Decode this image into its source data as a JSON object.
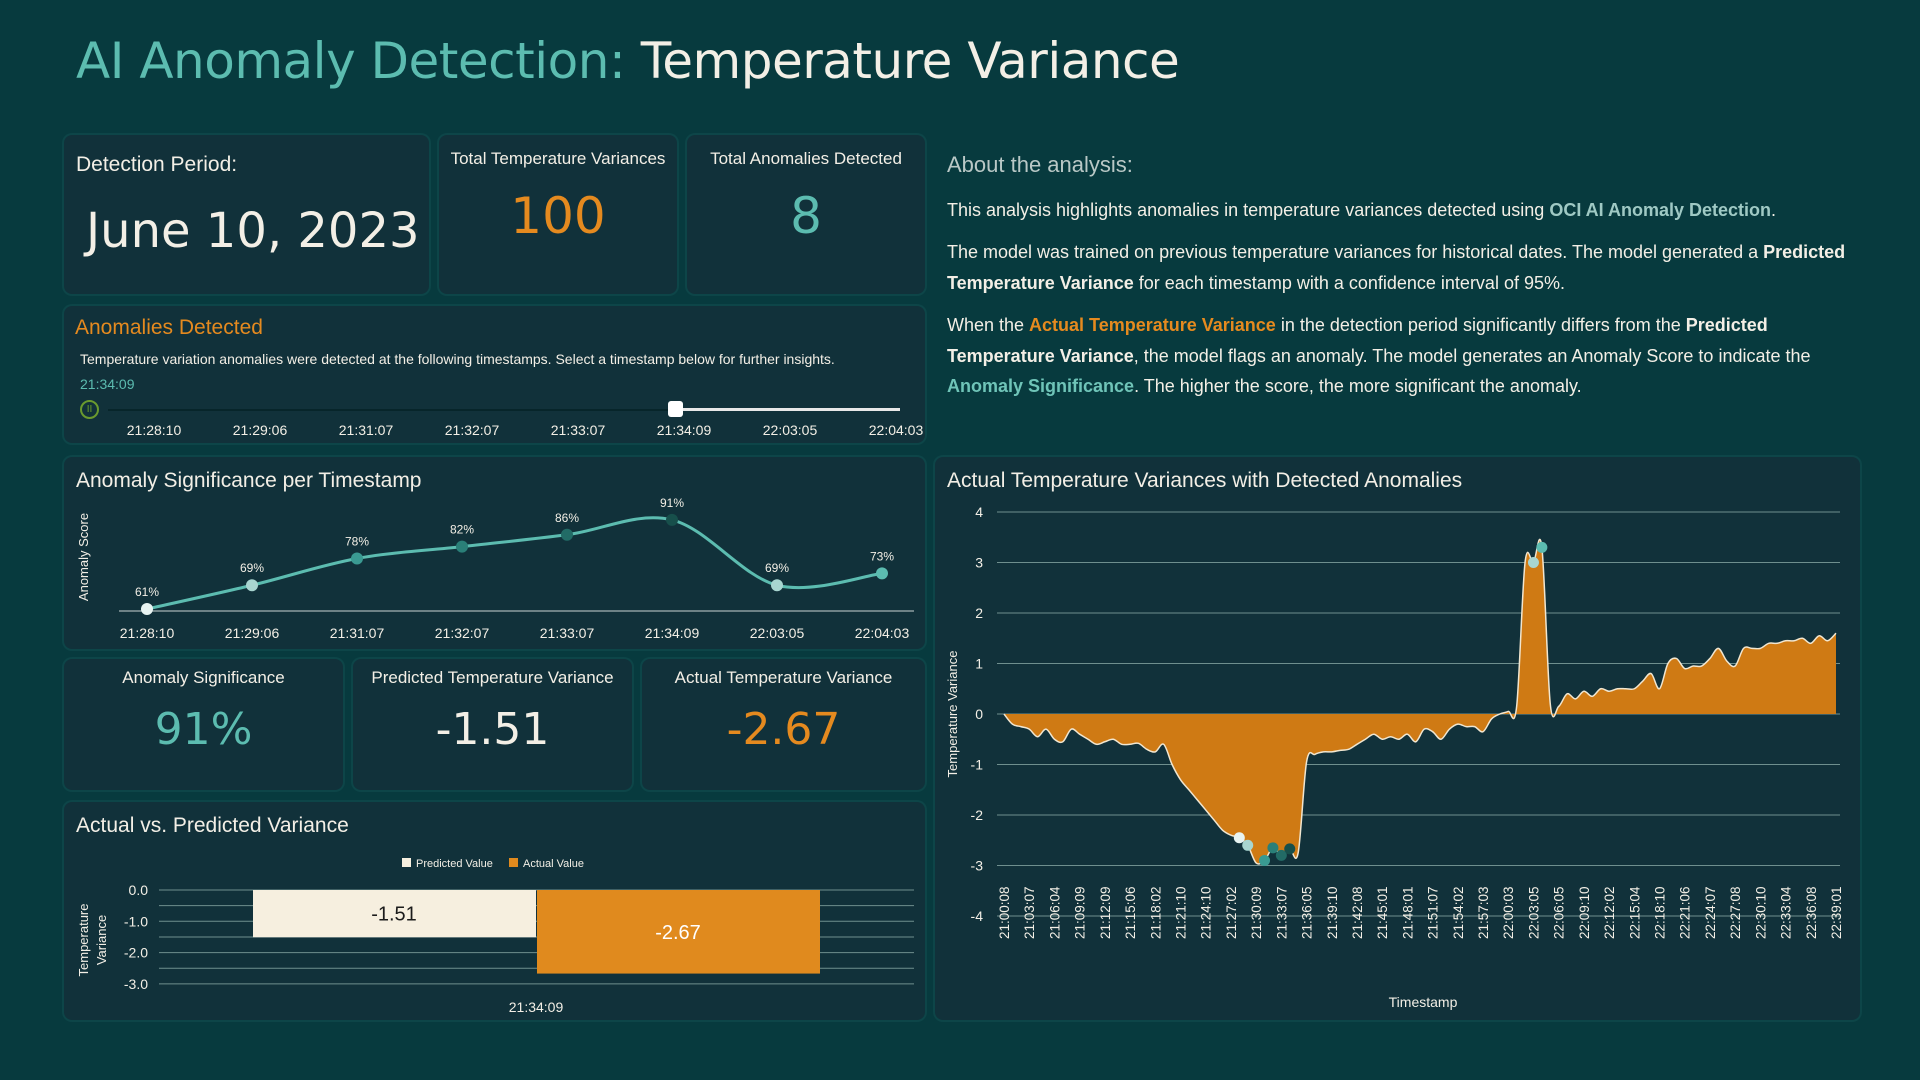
{
  "title": {
    "prefix": "AI Anomaly Detection:",
    "main": "Temperature Variance"
  },
  "cards": {
    "detection_period": {
      "label": "Detection Period:",
      "value": "June 10, 2023"
    },
    "total_variances": {
      "label": "Total Temperature Variances",
      "value": "100"
    },
    "total_anomalies": {
      "label": "Total Anomalies Detected",
      "value": "8"
    }
  },
  "anomalies_panel": {
    "title": "Anomalies Detected",
    "description": "Temperature variation anomalies were detected at the following timestamps. Select a timestamp below for further insights.",
    "selected": "21:34:09",
    "timestamps": [
      "21:28:10",
      "21:29:06",
      "21:31:07",
      "21:32:07",
      "21:33:07",
      "21:34:09",
      "22:03:05",
      "22:04:03"
    ],
    "selected_index": 5,
    "play_icon": "pause-circle-icon"
  },
  "kpis": {
    "significance": {
      "label": "Anomaly Significance",
      "value": "91%"
    },
    "predicted": {
      "label": "Predicted Temperature Variance",
      "value": "-1.51"
    },
    "actual": {
      "label": "Actual Temperature Variance",
      "value": "-2.67"
    }
  },
  "about": {
    "heading": "About the analysis:",
    "p1a": "This analysis highlights anomalies in temperature variances detected using ",
    "p1b": "OCI AI Anomaly Detection",
    "p1c": ".",
    "p2a": "The model was trained on previous temperature variances for historical dates. The model generated a ",
    "p2b": "Predicted Temperature Variance",
    "p2c": " for each timestamp with a confidence interval of 95%.",
    "p3a": "When the ",
    "p3b": "Actual Temperature Variance",
    "p3c": " in the detection period significantly differs from the ",
    "p3d": "Predicted Temperature Variance",
    "p3e": ", the model flags an anomaly. The model generates an Anomaly Score to indicate the ",
    "p3f": "Anomaly Significance",
    "p3g": ". The higher the score, the more significant the anomaly."
  },
  "colors": {
    "background": "#073a3e",
    "panel": "#11313a",
    "teal": "#5cbcb0",
    "orange": "#e08a1e",
    "cream": "#f6efdf"
  },
  "chart_data": [
    {
      "type": "line",
      "title": "Anomaly Significance per Timestamp",
      "ylabel": "Anomaly Score",
      "xlabel": "",
      "categories": [
        "21:28:10",
        "21:29:06",
        "21:31:07",
        "21:32:07",
        "21:33:07",
        "21:34:09",
        "22:03:05",
        "22:04:03"
      ],
      "values": [
        61,
        69,
        78,
        82,
        86,
        91,
        69,
        73
      ],
      "data_labels": [
        "61%",
        "69%",
        "78%",
        "82%",
        "86%",
        "91%",
        "69%",
        "73%"
      ],
      "grid": false
    },
    {
      "type": "bar",
      "title": "Actual vs. Predicted Variance",
      "ylabel": "Temperature Variance",
      "xlabel": "",
      "categories": [
        "21:34:09"
      ],
      "series": [
        {
          "name": "Predicted Value",
          "values": [
            -1.51
          ],
          "color": "#f6efdf"
        },
        {
          "name": "Actual Value",
          "values": [
            -2.67
          ],
          "color": "#e08a1e"
        }
      ],
      "ylim": [
        -3,
        0
      ],
      "yticks": [
        "0.0",
        "-1.0",
        "-2.0",
        "-3.0"
      ],
      "legend": "top",
      "grid": true
    },
    {
      "type": "area",
      "title": "Actual Temperature Variances with Detected Anomalies",
      "xlabel": "Timestamp",
      "ylabel": "Temperature Variance",
      "ylim": [
        -4,
        4
      ],
      "yticks": [
        "4",
        "3",
        "2",
        "1",
        "0",
        "-1",
        "-2",
        "-3",
        "-4"
      ],
      "grid": true,
      "xtick_labels": [
        "21:00:08",
        "21:03:07",
        "21:06:04",
        "21:09:09",
        "21:12:09",
        "21:15:06",
        "21:18:02",
        "21:21:10",
        "21:24:10",
        "21:27:02",
        "21:30:09",
        "21:33:07",
        "21:36:05",
        "21:39:10",
        "21:42:08",
        "21:45:01",
        "21:48:01",
        "21:51:07",
        "21:54:02",
        "21:57:03",
        "22:00:03",
        "22:03:05",
        "22:06:05",
        "22:09:10",
        "22:12:02",
        "22:15:04",
        "22:18:10",
        "22:21:06",
        "22:24:07",
        "22:27:08",
        "22:30:10",
        "22:33:04",
        "22:36:08",
        "22:39:01"
      ],
      "values": [
        0,
        -0.2,
        -0.25,
        -0.3,
        -0.45,
        -0.3,
        -0.5,
        -0.55,
        -0.3,
        -0.4,
        -0.5,
        -0.6,
        -0.55,
        -0.5,
        -0.6,
        -0.6,
        -0.58,
        -0.7,
        -0.75,
        -0.6,
        -1.0,
        -1.3,
        -1.5,
        -1.7,
        -1.9,
        -2.1,
        -2.3,
        -2.4,
        -2.45,
        -2.6,
        -2.95,
        -2.9,
        -2.65,
        -2.8,
        -2.67,
        -2.75,
        -0.95,
        -0.8,
        -0.75,
        -0.75,
        -0.72,
        -0.7,
        -0.6,
        -0.5,
        -0.4,
        -0.5,
        -0.45,
        -0.5,
        -0.4,
        -0.55,
        -0.3,
        -0.35,
        -0.5,
        -0.3,
        -0.2,
        -0.25,
        -0.25,
        -0.35,
        -0.1,
        0,
        0.05,
        0.15,
        3.0,
        3.0,
        3.3,
        0.2,
        0.15,
        0.4,
        0.3,
        0.45,
        0.35,
        0.5,
        0.45,
        0.5,
        0.5,
        0.5,
        0.65,
        0.8,
        0.5,
        1.0,
        1.1,
        0.9,
        0.95,
        0.95,
        1.1,
        1.3,
        1.05,
        0.95,
        1.3,
        1.3,
        1.3,
        1.4,
        1.4,
        1.45,
        1.45,
        1.5,
        1.4,
        1.55,
        1.45,
        1.6
      ],
      "anomaly_indices": [
        28,
        29,
        31,
        32,
        33,
        34,
        63,
        64
      ],
      "anomaly_scores": [
        61,
        69,
        78,
        82,
        86,
        91,
        69,
        73
      ]
    }
  ]
}
